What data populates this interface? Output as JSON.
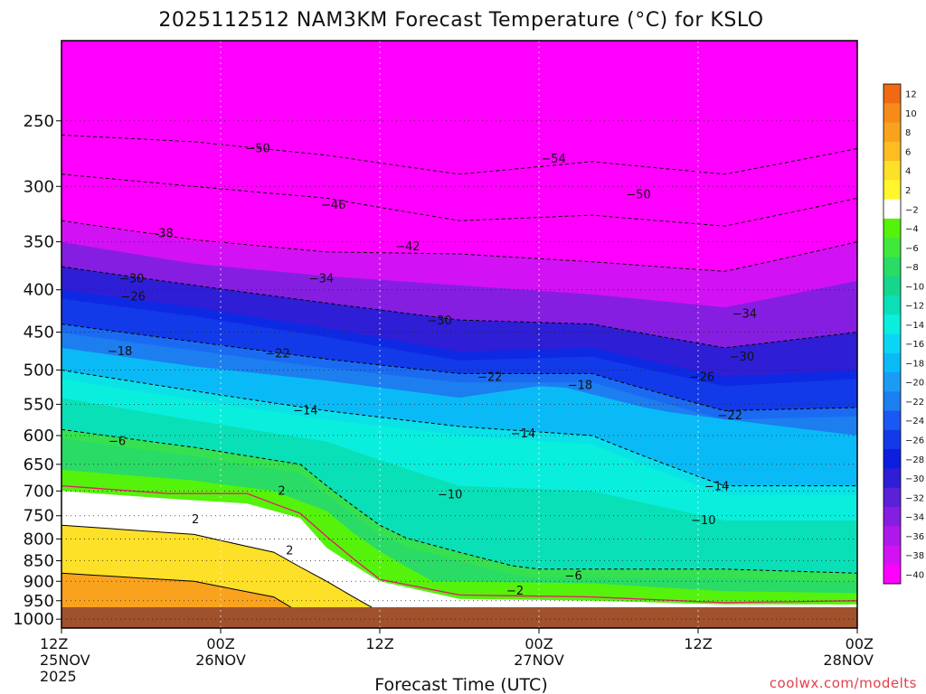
{
  "chart_data": {
    "type": "heatmap",
    "title": "2025112512 NAM3KM Forecast Temperature (°C) for KSLO",
    "xlabel": "Forecast Time (UTC)",
    "ylabel": "",
    "x_ticks": [
      {
        "line1": "12Z",
        "line2": "25NOV",
        "line3": "2025"
      },
      {
        "line1": "00Z",
        "line2": "26NOV",
        "line3": ""
      },
      {
        "line1": "12Z",
        "line2": "",
        "line3": ""
      },
      {
        "line1": "00Z",
        "line2": "27NOV",
        "line3": ""
      },
      {
        "line1": "12Z",
        "line2": "",
        "line3": ""
      },
      {
        "line1": "00Z",
        "line2": "28NOV",
        "line3": ""
      }
    ],
    "x_range_hours": [
      0,
      60
    ],
    "y_ticks": [
      250,
      300,
      350,
      400,
      450,
      500,
      550,
      600,
      650,
      700,
      750,
      800,
      850,
      900,
      950,
      1000
    ],
    "y_range_hpa": [
      200,
      1025
    ],
    "y_scale": "log-pressure",
    "grid": true,
    "colorbar": {
      "levels": [
        12,
        10,
        8,
        6,
        4,
        2,
        -2,
        -4,
        -6,
        -8,
        -10,
        -12,
        -14,
        -16,
        -18,
        -20,
        -22,
        -24,
        -26,
        -28,
        -30,
        -32,
        -34,
        -36,
        -38,
        -40
      ],
      "colors": [
        "#f06a14",
        "#f58c19",
        "#f9a21e",
        "#fcbc22",
        "#fde028",
        "#fff72c",
        "#ffffff",
        "#55f20c",
        "#40e83c",
        "#2adb66",
        "#16d68e",
        "#0ae0b7",
        "#0aeedd",
        "#0ad6f4",
        "#0abaf7",
        "#1a9cf5",
        "#1d7ef0",
        "#1a58f3",
        "#123ae8",
        "#0c1ee0",
        "#2e1ed6",
        "#5a21d9",
        "#861ee1",
        "#ae18ea",
        "#d212f4",
        "#ff00ff"
      ]
    },
    "contour_labels": [
      {
        "text": "-54",
        "hour": 37.1,
        "hpa": 278
      },
      {
        "text": "-50",
        "hour": 14.8,
        "hpa": 270
      },
      {
        "text": "-50",
        "hour": 43.5,
        "hpa": 307
      },
      {
        "text": "-46",
        "hour": 20.5,
        "hpa": 316
      },
      {
        "text": "-42",
        "hour": 26.1,
        "hpa": 355
      },
      {
        "text": "-38",
        "hour": 7.5,
        "hpa": 342
      },
      {
        "text": "-34",
        "hour": 19.6,
        "hpa": 388
      },
      {
        "text": "-34",
        "hour": 51.5,
        "hpa": 428
      },
      {
        "text": "-30",
        "hour": 5.3,
        "hpa": 388
      },
      {
        "text": "-30",
        "hour": 28.5,
        "hpa": 436
      },
      {
        "text": "-30",
        "hour": 51.3,
        "hpa": 482
      },
      {
        "text": "-26",
        "hour": 5.4,
        "hpa": 408
      },
      {
        "text": "-26",
        "hour": 48.3,
        "hpa": 510
      },
      {
        "text": "-22",
        "hour": 16.3,
        "hpa": 478
      },
      {
        "text": "-22",
        "hour": 32.3,
        "hpa": 510
      },
      {
        "text": "-22",
        "hour": 50.4,
        "hpa": 568
      },
      {
        "text": "-18",
        "hour": 4.4,
        "hpa": 475
      },
      {
        "text": "-18",
        "hour": 39.1,
        "hpa": 522
      },
      {
        "text": "-14",
        "hour": 18.4,
        "hpa": 560
      },
      {
        "text": "-14",
        "hour": 34.8,
        "hpa": 597
      },
      {
        "text": "-14",
        "hour": 49.4,
        "hpa": 692
      },
      {
        "text": "-10",
        "hour": 29.3,
        "hpa": 707
      },
      {
        "text": "-10",
        "hour": 48.4,
        "hpa": 760
      },
      {
        "text": "-6",
        "hour": 4.2,
        "hpa": 610
      },
      {
        "text": "-6",
        "hour": 38.6,
        "hpa": 887
      },
      {
        "text": "2",
        "hour": 16.6,
        "hpa": 700
      },
      {
        "text": "2",
        "hour": 10.1,
        "hpa": 758
      },
      {
        "text": "2",
        "hour": 17.2,
        "hpa": 827
      },
      {
        "text": "-2",
        "hour": 34.2,
        "hpa": 925
      }
    ]
  },
  "credit": "coolwx.com/modelts"
}
